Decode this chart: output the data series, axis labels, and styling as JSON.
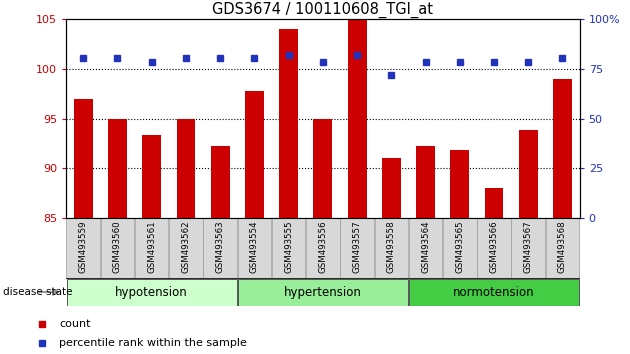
{
  "title": "GDS3674 / 100110608_TGI_at",
  "samples": [
    "GSM493559",
    "GSM493560",
    "GSM493561",
    "GSM493562",
    "GSM493563",
    "GSM493554",
    "GSM493555",
    "GSM493556",
    "GSM493557",
    "GSM493558",
    "GSM493564",
    "GSM493565",
    "GSM493566",
    "GSM493567",
    "GSM493568"
  ],
  "bar_values": [
    97.0,
    95.0,
    93.3,
    95.0,
    92.2,
    97.8,
    104.0,
    95.0,
    105.0,
    91.0,
    92.2,
    91.8,
    88.0,
    93.8,
    99.0
  ],
  "percentile_values": [
    80.5,
    80.5,
    78.5,
    80.5,
    80.5,
    80.5,
    82.0,
    78.5,
    82.0,
    72.0,
    78.5,
    78.5,
    78.5,
    78.5,
    80.5
  ],
  "bar_color": "#cc0000",
  "dot_color": "#2233bb",
  "ylim_left": [
    85,
    105
  ],
  "ylim_right": [
    0,
    100
  ],
  "yticks_left": [
    85,
    90,
    95,
    100,
    105
  ],
  "yticks_right": [
    0,
    25,
    50,
    75,
    100
  ],
  "groups": [
    {
      "label": "hypotension",
      "start": 0,
      "end": 5,
      "color": "#ccffcc"
    },
    {
      "label": "hypertension",
      "start": 5,
      "end": 10,
      "color": "#99ee99"
    },
    {
      "label": "normotension",
      "start": 10,
      "end": 15,
      "color": "#44cc44"
    }
  ],
  "disease_state_label": "disease state",
  "grid_dotlines": [
    90,
    95,
    100
  ],
  "bar_bottom": 85,
  "bar_width": 0.55,
  "tick_bg_color": "#d8d8d8",
  "tick_border_color": "#999999"
}
